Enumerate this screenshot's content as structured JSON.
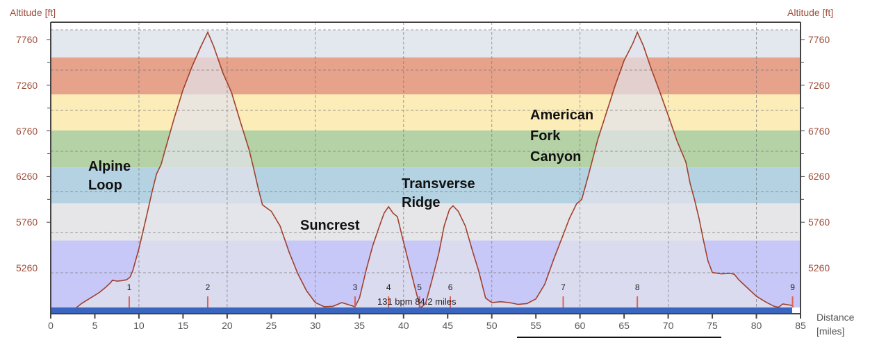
{
  "chart_data": {
    "type": "area",
    "title": "",
    "xlabel": "Distance [miles]",
    "ylabel": "Altitude [ft]",
    "xlim": [
      0,
      85
    ],
    "ylim": [
      4770,
      7865
    ],
    "x_ticks": [
      0,
      5,
      10,
      15,
      20,
      25,
      30,
      35,
      40,
      45,
      50,
      55,
      60,
      65,
      70,
      75,
      80,
      85
    ],
    "y_ticks": [
      7760,
      7260,
      6760,
      6260,
      5760,
      5260
    ],
    "grid": true,
    "legend": "none",
    "intensity_bands": [
      {
        "from": 7565,
        "to": 7865,
        "color": "#e3e8ee"
      },
      {
        "from": 7160,
        "to": 7565,
        "color": "#e6a28a"
      },
      {
        "from": 6765,
        "to": 7160,
        "color": "#fcecb8"
      },
      {
        "from": 6360,
        "to": 6765,
        "color": "#b4d2a6"
      },
      {
        "from": 5965,
        "to": 6360,
        "color": "#b4d2e2"
      },
      {
        "from": 5560,
        "to": 5965,
        "color": "#e6e6e8"
      },
      {
        "from": 4770,
        "to": 5560,
        "color": "#c8c8f8"
      }
    ],
    "series": [
      {
        "name": "Altitude",
        "color": "#a0402c",
        "points": [
          [
            2.9,
            4824
          ],
          [
            3.5,
            4870
          ],
          [
            4.5,
            4930
          ],
          [
            5.5,
            4990
          ],
          [
            6.2,
            5045
          ],
          [
            6.8,
            5100
          ],
          [
            7.0,
            5126
          ],
          [
            7.5,
            5115
          ],
          [
            8.0,
            5120
          ],
          [
            8.6,
            5130
          ],
          [
            9.0,
            5160
          ],
          [
            9.3,
            5230
          ],
          [
            10.0,
            5470
          ],
          [
            10.8,
            5800
          ],
          [
            11.5,
            6100
          ],
          [
            12.0,
            6290
          ],
          [
            12.5,
            6390
          ],
          [
            13.0,
            6560
          ],
          [
            14.0,
            6900
          ],
          [
            15.0,
            7210
          ],
          [
            16.0,
            7460
          ],
          [
            17.0,
            7680
          ],
          [
            17.8,
            7840
          ],
          [
            18.5,
            7680
          ],
          [
            19.5,
            7400
          ],
          [
            20.5,
            7180
          ],
          [
            21.5,
            6860
          ],
          [
            22.5,
            6550
          ],
          [
            23.0,
            6350
          ],
          [
            23.5,
            6140
          ],
          [
            24.0,
            5950
          ],
          [
            25.0,
            5880
          ],
          [
            26.0,
            5720
          ],
          [
            27.0,
            5440
          ],
          [
            28.0,
            5200
          ],
          [
            29.0,
            5010
          ],
          [
            30.0,
            4880
          ],
          [
            31.0,
            4835
          ],
          [
            32.0,
            4840
          ],
          [
            33.0,
            4880
          ],
          [
            34.0,
            4850
          ],
          [
            34.5,
            4835
          ],
          [
            35.0,
            4930
          ],
          [
            35.8,
            5250
          ],
          [
            36.5,
            5500
          ],
          [
            37.2,
            5700
          ],
          [
            37.8,
            5860
          ],
          [
            38.3,
            5930
          ],
          [
            38.8,
            5860
          ],
          [
            39.3,
            5820
          ],
          [
            39.8,
            5620
          ],
          [
            40.5,
            5350
          ],
          [
            41.3,
            5040
          ],
          [
            41.9,
            4820
          ],
          [
            42.5,
            4870
          ],
          [
            43.2,
            5120
          ],
          [
            44.0,
            5420
          ],
          [
            44.6,
            5720
          ],
          [
            45.2,
            5900
          ],
          [
            45.6,
            5940
          ],
          [
            46.2,
            5880
          ],
          [
            47.0,
            5720
          ],
          [
            47.8,
            5450
          ],
          [
            48.5,
            5230
          ],
          [
            49.3,
            4930
          ],
          [
            50.0,
            4880
          ],
          [
            51.0,
            4890
          ],
          [
            52.0,
            4880
          ],
          [
            53.0,
            4860
          ],
          [
            54.0,
            4870
          ],
          [
            55.0,
            4920
          ],
          [
            56.0,
            5080
          ],
          [
            57.0,
            5350
          ],
          [
            58.0,
            5600
          ],
          [
            58.8,
            5800
          ],
          [
            59.6,
            5960
          ],
          [
            60.2,
            6010
          ],
          [
            61.0,
            6290
          ],
          [
            62.0,
            6660
          ],
          [
            63.0,
            6960
          ],
          [
            64.0,
            7260
          ],
          [
            65.0,
            7530
          ],
          [
            66.0,
            7720
          ],
          [
            66.5,
            7840
          ],
          [
            67.2,
            7690
          ],
          [
            68.0,
            7460
          ],
          [
            69.0,
            7200
          ],
          [
            70.0,
            6930
          ],
          [
            71.0,
            6650
          ],
          [
            72.0,
            6420
          ],
          [
            72.5,
            6180
          ],
          [
            73.0,
            6000
          ],
          [
            73.5,
            5800
          ],
          [
            74.0,
            5560
          ],
          [
            74.5,
            5340
          ],
          [
            75.0,
            5210
          ],
          [
            76.0,
            5195
          ],
          [
            77.0,
            5200
          ],
          [
            77.5,
            5190
          ],
          [
            78.0,
            5130
          ],
          [
            79.0,
            5040
          ],
          [
            80.0,
            4950
          ],
          [
            81.0,
            4890
          ],
          [
            82.0,
            4840
          ],
          [
            82.5,
            4830
          ],
          [
            83.0,
            4865
          ],
          [
            84.0,
            4850
          ],
          [
            84.2,
            4830
          ]
        ]
      }
    ],
    "annotations": [
      {
        "text": "Alpine Loop",
        "x": 4.3,
        "y": 6280
      },
      {
        "text": "Suncrest",
        "x": 28.2,
        "y": 5720
      },
      {
        "text": "Transverse Ridge",
        "x": 39.7,
        "y": 6150
      },
      {
        "text": "American Fork Canyon",
        "x": 54.3,
        "y": 6970
      }
    ],
    "markers": [
      {
        "label": "1",
        "x": 8.9
      },
      {
        "label": "2",
        "x": 17.8
      },
      {
        "label": "3",
        "x": 34.5
      },
      {
        "label": "4",
        "x": 38.3
      },
      {
        "label": "5",
        "x": 41.8
      },
      {
        "label": "6",
        "x": 45.3
      },
      {
        "label": "7",
        "x": 58.1
      },
      {
        "label": "8",
        "x": 66.5
      },
      {
        "label": "9",
        "x": 84.1
      }
    ],
    "info_text": "131 bpm 84.2 miles"
  },
  "labels": {
    "y_axis_left": "Altitude [ft]",
    "y_axis_right": "Altitude [ft]",
    "x_axis_line1": "Distance",
    "x_axis_line2": "[miles]",
    "annot_alpine_1": "Alpine",
    "annot_alpine_2": "Loop",
    "annot_suncrest": "Suncrest",
    "annot_transverse_1": "Transverse",
    "annot_transverse_2": "Ridge",
    "annot_afc_1": "American",
    "annot_afc_2": "Fork",
    "annot_afc_3": "Canyon",
    "info": "131 bpm 84.2 miles"
  },
  "colors": {
    "profile_line": "#a0402c",
    "axis_text": "#a0503c",
    "marker": "#e06050",
    "baseline_bar": "#3a66c0",
    "frame": "#444444"
  }
}
